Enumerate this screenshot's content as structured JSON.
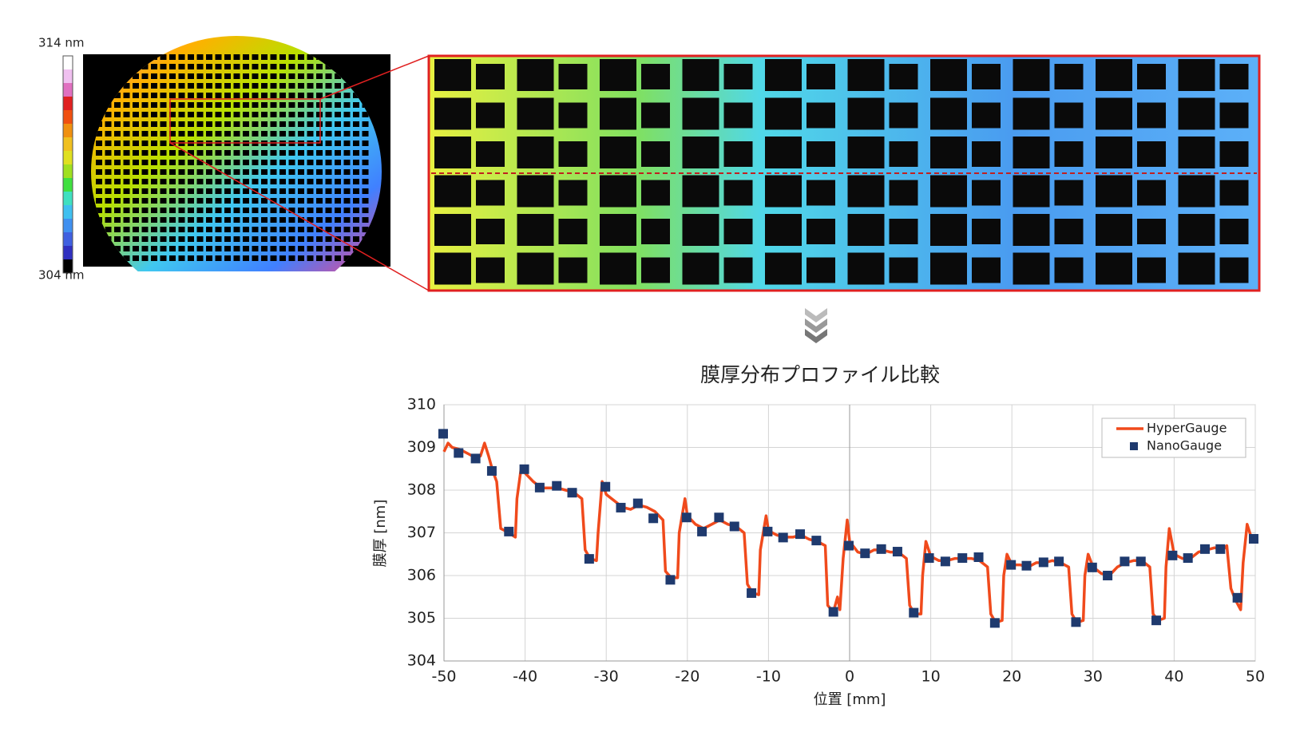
{
  "colorbar": {
    "max_label": "314 nm",
    "min_label": "304 nm"
  },
  "chart_data": {
    "type": "line",
    "title": "膜厚分布プロファイル比較",
    "x_label": "位置 [mm]",
    "y_label": "膜厚 [nm]",
    "xlim": [
      -50,
      50
    ],
    "xticks": [
      -50,
      -40,
      -30,
      -20,
      -10,
      0,
      10,
      20,
      30,
      40,
      50
    ],
    "ylim": [
      304,
      310
    ],
    "yticks": [
      304,
      305,
      306,
      307,
      308,
      309,
      310
    ],
    "grid": true,
    "legend": "top-right",
    "series": [
      {
        "name": "HyperGauge",
        "color": "#f04a1c",
        "style": "line",
        "x": [
          -50,
          -49.5,
          -49,
          -48,
          -47,
          -46,
          -45.5,
          -45,
          -44.5,
          -44,
          -43.5,
          -43,
          -42,
          -41.2,
          -41,
          -40.5,
          -40,
          -39,
          -38,
          -37,
          -36,
          -35,
          -34,
          -33,
          -32.6,
          -32,
          -31.2,
          -31,
          -30.5,
          -30,
          -29,
          -28,
          -27,
          -26,
          -25,
          -24,
          -23,
          -22.7,
          -22,
          -21.2,
          -21,
          -20.3,
          -20,
          -19,
          -18,
          -17,
          -16,
          -15,
          -14,
          -13,
          -12.6,
          -12,
          -11.2,
          -11,
          -10.3,
          -10,
          -9,
          -8,
          -7,
          -6,
          -5,
          -4,
          -3,
          -2.7,
          -2,
          -1.5,
          -1.2,
          -0.8,
          -0.3,
          0,
          1,
          2,
          3,
          4,
          5,
          6,
          7,
          7.4,
          8,
          8.8,
          9,
          9.4,
          10,
          11,
          12,
          13,
          14,
          15,
          16,
          17,
          17.4,
          18,
          18.8,
          19,
          19.4,
          20,
          21,
          22,
          23,
          24,
          25,
          26,
          27,
          27.4,
          28,
          28.8,
          29,
          29.4,
          30,
          31,
          32,
          33,
          34,
          35,
          36,
          37,
          37.4,
          38,
          38.8,
          39,
          39.4,
          40,
          41,
          42,
          43,
          44,
          45,
          46,
          46.5,
          47,
          47.5,
          48.2,
          48.5,
          49,
          49.5,
          50
        ],
        "values": [
          308.9,
          309.1,
          309.0,
          308.95,
          308.85,
          308.75,
          308.8,
          309.1,
          308.8,
          308.45,
          308.2,
          307.1,
          307.0,
          306.9,
          307.8,
          308.5,
          308.4,
          308.2,
          308.05,
          308.05,
          308.05,
          308.0,
          307.95,
          307.8,
          306.6,
          306.4,
          306.35,
          307.0,
          308.2,
          307.9,
          307.75,
          307.6,
          307.55,
          307.65,
          307.6,
          307.5,
          307.3,
          306.1,
          305.95,
          305.95,
          307.0,
          307.8,
          307.4,
          307.2,
          307.1,
          307.2,
          307.3,
          307.2,
          307.15,
          307.0,
          305.8,
          305.6,
          305.55,
          306.6,
          307.4,
          307.05,
          306.95,
          306.9,
          306.9,
          306.95,
          306.85,
          306.8,
          306.7,
          305.3,
          305.15,
          305.5,
          305.2,
          306.4,
          307.3,
          306.8,
          306.55,
          306.5,
          306.6,
          306.6,
          306.55,
          306.55,
          306.4,
          305.3,
          305.1,
          305.1,
          306.0,
          306.8,
          306.45,
          306.35,
          306.35,
          306.4,
          306.4,
          306.4,
          306.35,
          306.2,
          305.1,
          304.9,
          304.95,
          306.0,
          306.5,
          306.25,
          306.25,
          306.2,
          306.3,
          306.3,
          306.35,
          306.3,
          306.2,
          305.1,
          304.9,
          304.95,
          306.0,
          306.5,
          306.2,
          306.05,
          306.0,
          306.2,
          306.3,
          306.35,
          306.35,
          306.2,
          305.1,
          304.95,
          305.0,
          306.2,
          307.1,
          306.5,
          306.4,
          306.4,
          306.55,
          306.6,
          306.65,
          306.6,
          306.7,
          305.7,
          305.45,
          305.2,
          306.3,
          307.2,
          306.9,
          306.8
        ]
      },
      {
        "name": "NanoGauge",
        "color": "#1f3a6e",
        "style": "marker",
        "x": [
          -50.1,
          -48.2,
          -46.1,
          -44.1,
          -42.0,
          -40.1,
          -38.2,
          -36.1,
          -34.2,
          -32.1,
          -30.1,
          -28.2,
          -26.1,
          -24.2,
          -22.1,
          -20.1,
          -18.2,
          -16.1,
          -14.2,
          -12.1,
          -10.1,
          -8.2,
          -6.1,
          -4.1,
          -2.0,
          -0.1,
          1.9,
          3.9,
          5.9,
          7.9,
          9.8,
          11.8,
          13.9,
          15.9,
          17.9,
          19.9,
          21.8,
          23.9,
          25.8,
          27.9,
          29.9,
          31.8,
          33.9,
          35.9,
          37.8,
          39.8,
          41.7,
          43.8,
          45.7,
          47.8,
          49.8
        ],
        "values": [
          309.32,
          308.87,
          308.74,
          308.45,
          307.03,
          308.49,
          308.06,
          308.1,
          307.94,
          306.39,
          308.08,
          307.59,
          307.69,
          307.34,
          305.9,
          307.36,
          307.03,
          307.36,
          307.15,
          305.59,
          307.03,
          306.89,
          306.97,
          306.82,
          305.15,
          306.7,
          306.52,
          306.62,
          306.56,
          305.13,
          306.41,
          306.33,
          306.41,
          306.43,
          304.89,
          306.25,
          306.23,
          306.31,
          306.33,
          304.91,
          306.19,
          306.0,
          306.33,
          306.33,
          304.95,
          306.47,
          306.41,
          306.62,
          306.62,
          305.48,
          306.86
        ]
      }
    ]
  }
}
